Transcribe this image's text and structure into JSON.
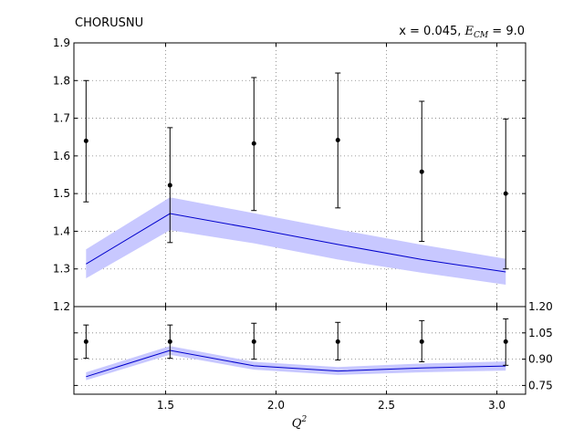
{
  "chart_data": [
    {
      "type": "line",
      "panel": "main",
      "title_left": "CHORUSNU",
      "title_right": "x = 0.045, ",
      "title_right_var": "E",
      "title_right_sub": "CM",
      "title_right_tail": " = 9.0",
      "ylim": [
        1.2,
        1.9
      ],
      "yticks": [
        "1.2",
        "1.3",
        "1.4",
        "1.5",
        "1.6",
        "1.7",
        "1.8",
        "1.9"
      ],
      "ytick_values": [
        1.2,
        1.3,
        1.4,
        1.5,
        1.6,
        1.7,
        1.8,
        1.9
      ],
      "grid": true,
      "data_points": {
        "x": [
          1.14,
          1.52,
          1.9,
          2.28,
          2.66,
          3.04
        ],
        "y": [
          1.64,
          1.522,
          1.633,
          1.642,
          1.558,
          1.5
        ],
        "err_low": [
          1.478,
          1.37,
          1.455,
          1.462,
          1.373,
          1.3
        ],
        "err_high": [
          1.8,
          1.675,
          1.808,
          1.82,
          1.745,
          1.698
        ],
        "color": "#000000"
      },
      "prediction": {
        "x": [
          1.14,
          1.52,
          1.9,
          2.28,
          2.66,
          3.04
        ],
        "y": [
          1.313,
          1.447,
          1.407,
          1.365,
          1.325,
          1.292
        ],
        "band_low": [
          1.275,
          1.403,
          1.368,
          1.325,
          1.29,
          1.258
        ],
        "band_high": [
          1.352,
          1.49,
          1.448,
          1.405,
          1.364,
          1.327
        ],
        "line_color": "#0000cc",
        "band_color": "#c8c8ff"
      }
    },
    {
      "type": "line",
      "panel": "ratio",
      "ylim": [
        0.7,
        1.2
      ],
      "yticks": [
        "0.75",
        "0.90",
        "1.05",
        "1.20"
      ],
      "ytick_values": [
        0.75,
        0.9,
        1.05,
        1.2
      ],
      "grid": true,
      "data_points": {
        "x": [
          1.14,
          1.52,
          1.9,
          2.28,
          2.66,
          3.04
        ],
        "y": [
          1.0,
          1.0,
          1.0,
          1.0,
          1.0,
          1.0
        ],
        "err_low": [
          0.905,
          0.905,
          0.9,
          0.895,
          0.885,
          0.865
        ],
        "err_high": [
          1.095,
          1.095,
          1.105,
          1.11,
          1.12,
          1.13
        ],
        "color": "#000000"
      },
      "prediction": {
        "x": [
          1.14,
          1.52,
          1.9,
          2.28,
          2.66,
          3.04
        ],
        "y": [
          0.8,
          0.95,
          0.862,
          0.832,
          0.85,
          0.861
        ],
        "band_low": [
          0.78,
          0.925,
          0.84,
          0.81,
          0.825,
          0.835
        ],
        "band_high": [
          0.825,
          0.975,
          0.885,
          0.855,
          0.875,
          0.887
        ],
        "line_color": "#0000cc",
        "band_color": "#c8c8ff"
      },
      "xlim": [
        1.085,
        3.13
      ],
      "xticks": [
        "1.5",
        "2.0",
        "2.5",
        "3.0"
      ],
      "xtick_values": [
        1.5,
        2.0,
        2.5,
        3.0
      ],
      "xlabel_var": "Q",
      "xlabel_sup": "2"
    }
  ]
}
